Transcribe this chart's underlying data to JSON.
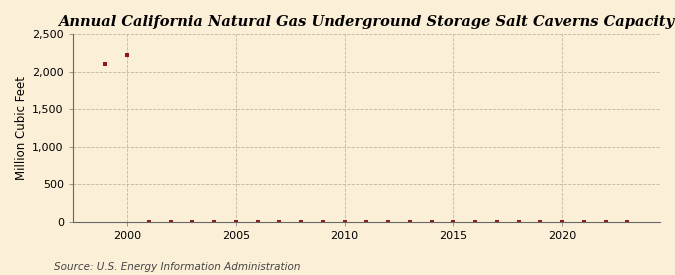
{
  "title": "Annual California Natural Gas Underground Storage Salt Caverns Capacity",
  "ylabel": "Million Cubic Feet",
  "source": "Source: U.S. Energy Information Administration",
  "background_color": "#fcefd8",
  "plot_background_color": "#fcefd8",
  "grid_color": "#c8b49a",
  "marker_color": "#8b1a1a",
  "line_color": "#8b1a1a",
  "xlim": [
    1997.5,
    2024.5
  ],
  "ylim": [
    0,
    2500
  ],
  "xticks": [
    2000,
    2005,
    2010,
    2015,
    2020
  ],
  "yticks": [
    0,
    500,
    1000,
    1500,
    2000,
    2500
  ],
  "years": [
    1999,
    2000,
    2001,
    2002,
    2003,
    2004,
    2005,
    2006,
    2007,
    2008,
    2009,
    2010,
    2011,
    2012,
    2013,
    2014,
    2015,
    2016,
    2017,
    2018,
    2019,
    2020,
    2021,
    2022,
    2023
  ],
  "values": [
    2100,
    2220,
    1,
    1,
    1,
    1,
    1,
    1,
    1,
    1,
    1,
    1,
    1,
    1,
    1,
    1,
    1,
    1,
    1,
    1,
    1,
    1,
    1,
    1,
    1
  ],
  "title_fontsize": 10.5,
  "label_fontsize": 8.5,
  "tick_fontsize": 8,
  "source_fontsize": 7.5
}
